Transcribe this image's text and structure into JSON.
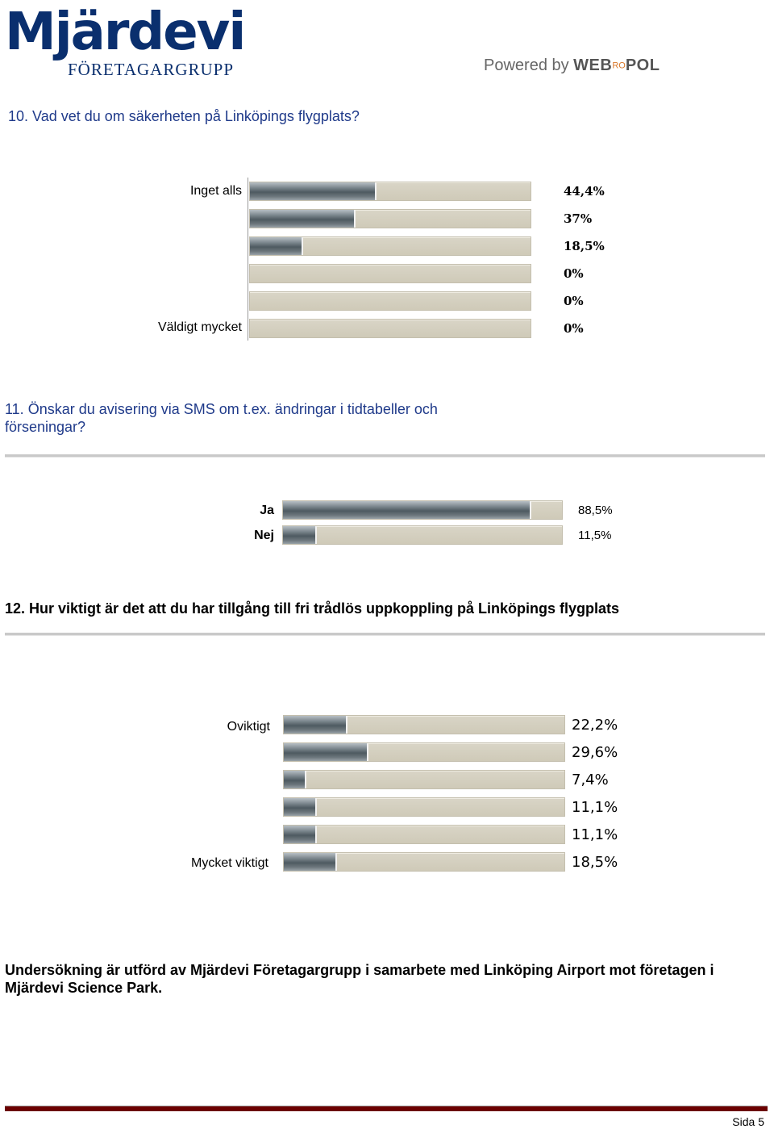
{
  "header": {
    "logo_main": "Mjärdevi",
    "logo_sub": "FÖRETAGARGRUPP",
    "powered_prefix": "Powered by ",
    "powered_brand_a": "WEB",
    "powered_brand_ro": "RO",
    "powered_brand_b": "POL"
  },
  "q10": {
    "title": "10. Vad vet du om säkerheten på Linköpings flygplats?",
    "top_label": "Inget alls",
    "bottom_label": "Väldigt mycket",
    "percent_labels": [
      "44,4%",
      "37%",
      "18,5%",
      "0%",
      "0%",
      "0%"
    ],
    "chart_data": {
      "type": "bar",
      "orientation": "horizontal",
      "values": [
        44.4,
        37,
        18.5,
        0,
        0,
        0
      ],
      "xlim": [
        0,
        100
      ]
    }
  },
  "q11": {
    "title": "11. Önskar du avisering via SMS om t.ex. ändringar i tidtabeller och förseningar?",
    "labels": [
      "Ja",
      "Nej"
    ],
    "percent_labels": [
      "88,5%",
      "11,5%"
    ],
    "chart_data": {
      "type": "bar",
      "orientation": "horizontal",
      "categories": [
        "Ja",
        "Nej"
      ],
      "values": [
        88.5,
        11.5
      ],
      "xlim": [
        0,
        100
      ]
    }
  },
  "q12": {
    "title": "12. Hur viktigt är det att du har tillgång till fri trådlös uppkoppling på Linköpings flygplats",
    "top_label": "Oviktigt",
    "bottom_label": "Mycket viktigt",
    "percent_labels": [
      "22,2%",
      "29,6%",
      "7,4%",
      "11,1%",
      "11,1%",
      "18,5%"
    ],
    "chart_data": {
      "type": "bar",
      "orientation": "horizontal",
      "values": [
        22.2,
        29.6,
        7.4,
        11.1,
        11.1,
        18.5
      ],
      "xlim": [
        0,
        100
      ]
    }
  },
  "footer": {
    "text": "Undersökning är utförd av Mjärdevi Företagargrupp i samarbete med Linköping Airport mot företagen i Mjärdevi Science Park.",
    "page": "Sida 5"
  }
}
